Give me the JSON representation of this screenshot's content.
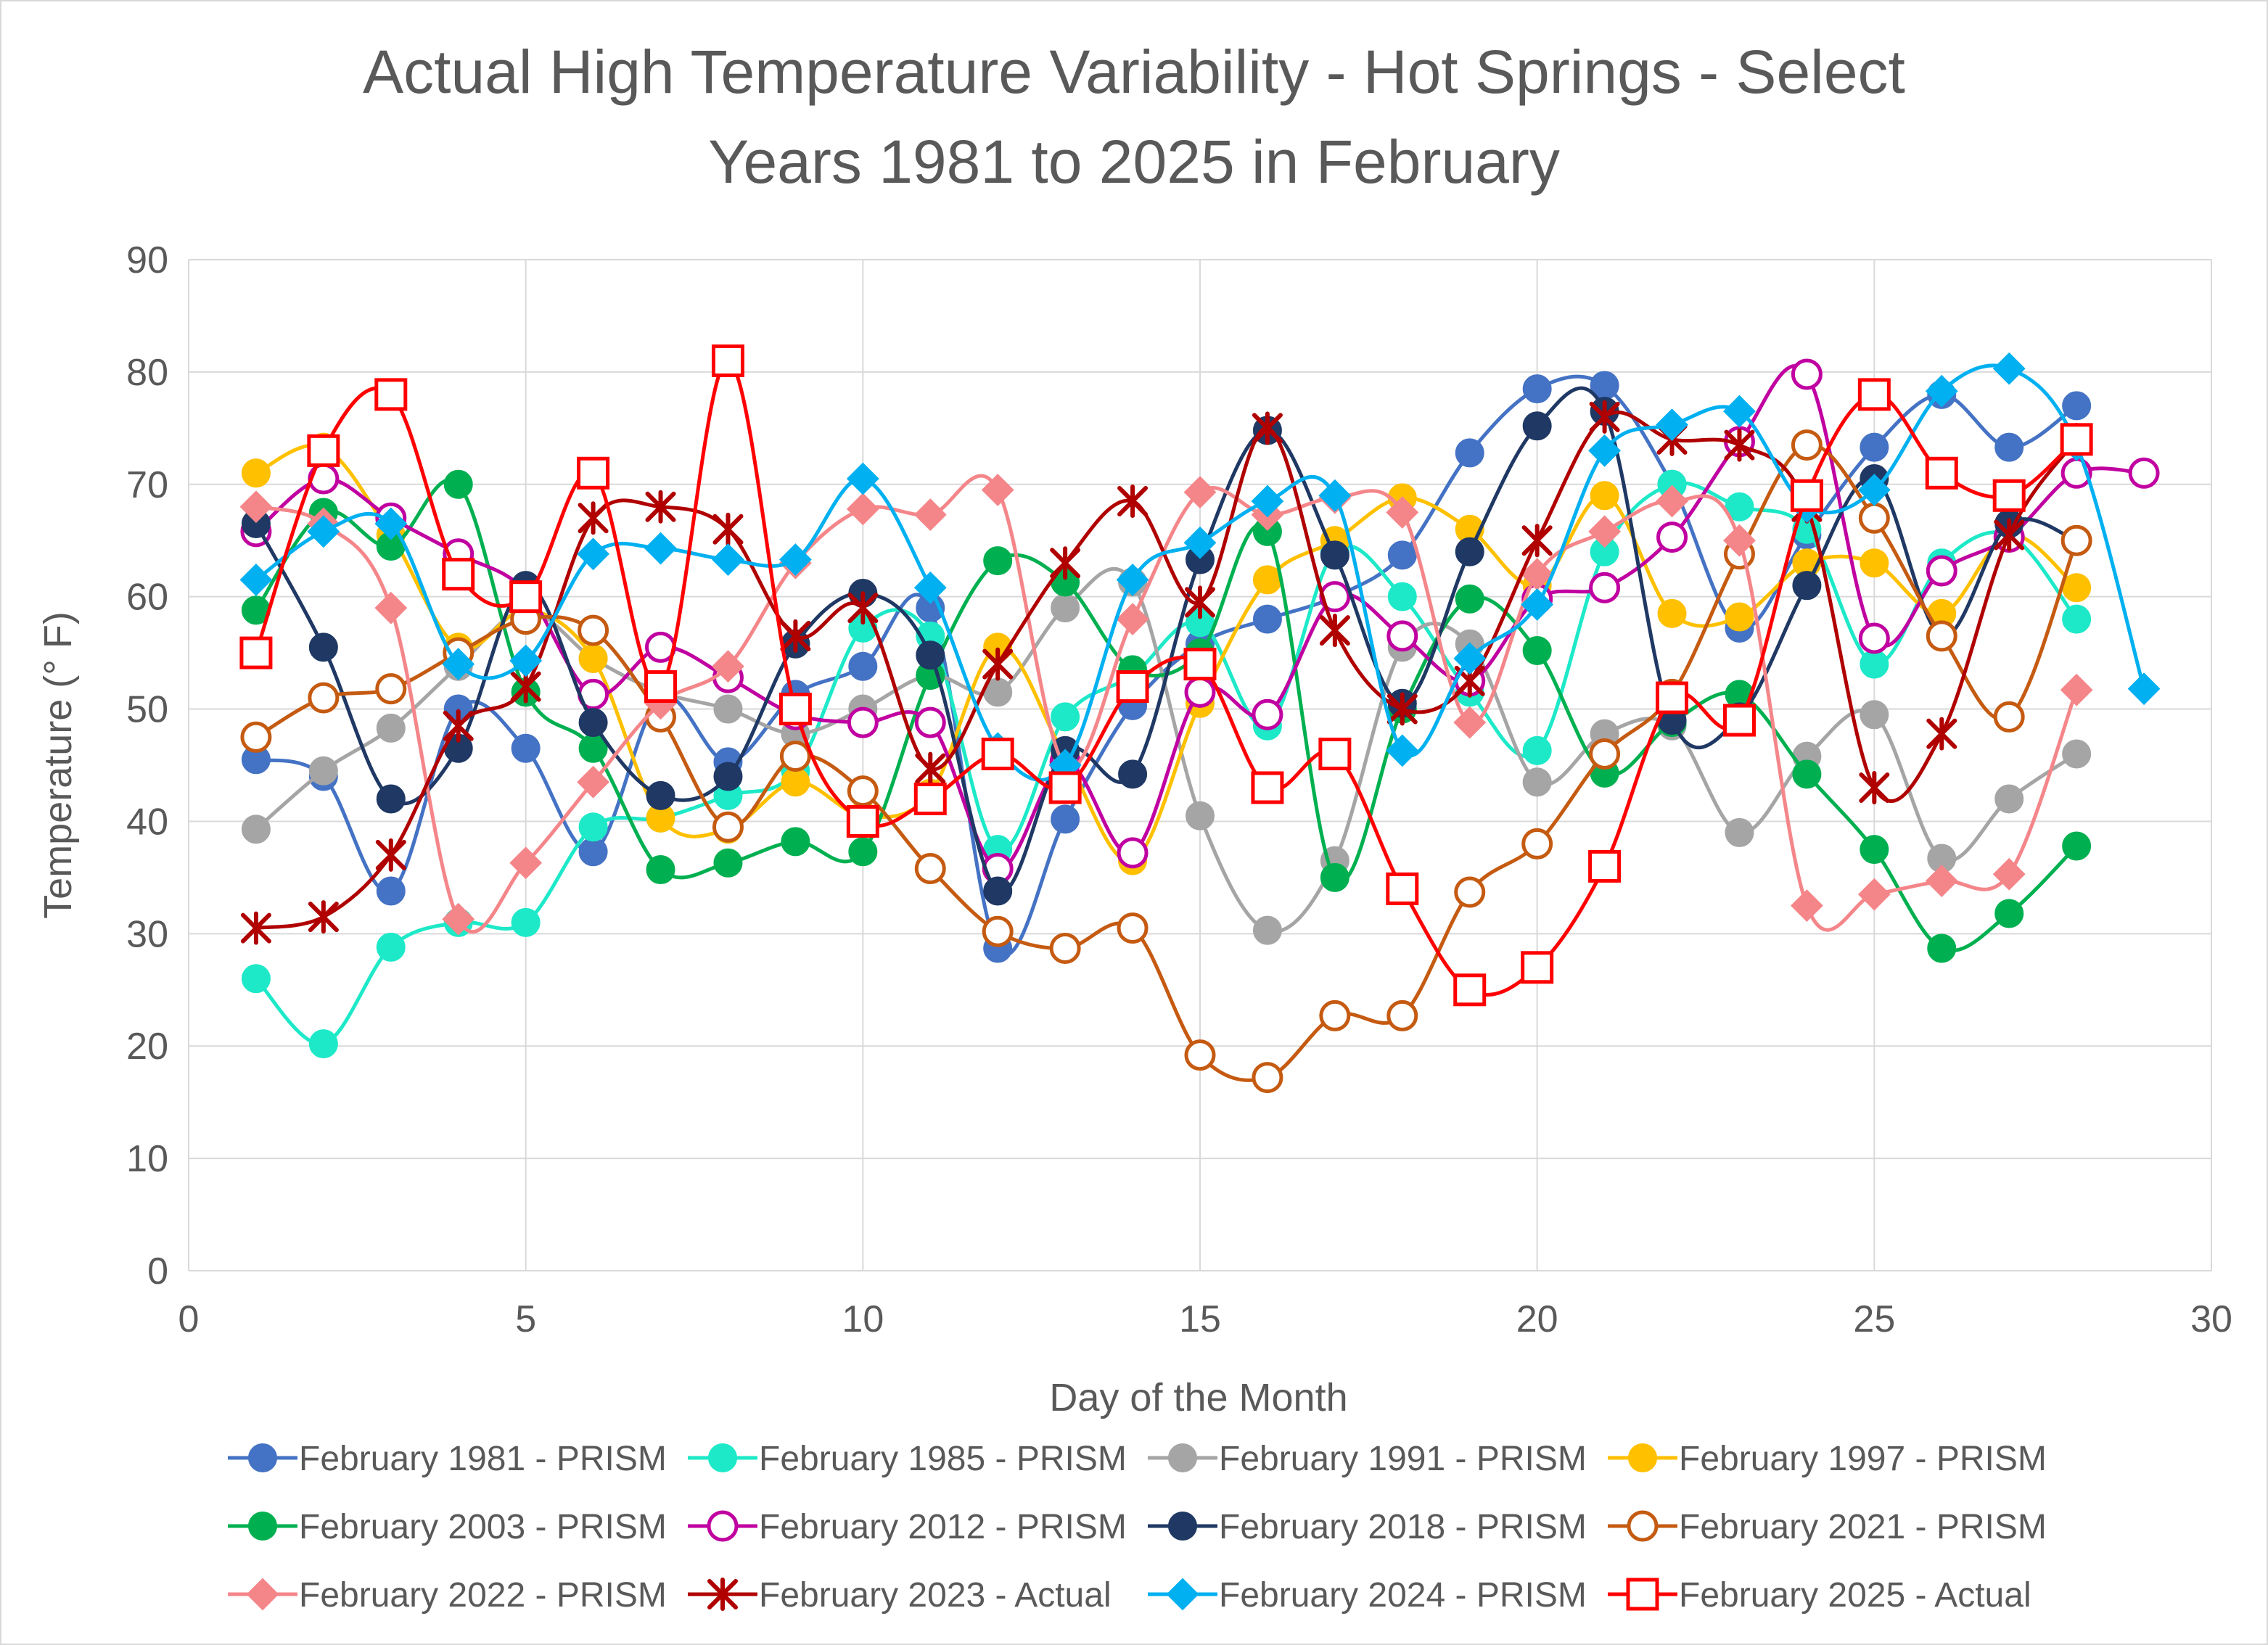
{
  "chart_data": {
    "type": "line",
    "title_lines": [
      "Actual High Temperature Variability - Hot Springs - Select",
      "Years 1981 to 2025 in February"
    ],
    "xlabel": "Day of the Month",
    "ylabel": "Temperature (° F)",
    "xlim": [
      0,
      30
    ],
    "ylim": [
      0,
      90
    ],
    "xticks": [
      0,
      5,
      10,
      15,
      20,
      25,
      30
    ],
    "yticks": [
      0,
      10,
      20,
      30,
      40,
      50,
      60,
      70,
      80,
      90
    ],
    "grid": true,
    "legend_position": "bottom",
    "series": [
      {
        "name": "February 1981 - PRISM",
        "color": "#4472C4",
        "marker": "circle-filled",
        "x": [
          1,
          2,
          3,
          4,
          5,
          6,
          7,
          8,
          9,
          10,
          11,
          12,
          13,
          14,
          15,
          16,
          17,
          18,
          19,
          20,
          21,
          22,
          23,
          24,
          25,
          26,
          27,
          28
        ],
        "values": [
          45.5,
          44,
          33.8,
          50,
          46.5,
          37.3,
          51,
          45.3,
          51.3,
          53.8,
          59,
          28.7,
          40.2,
          50.3,
          55.8,
          58,
          60,
          63.7,
          72.8,
          78.5,
          78.8,
          70,
          57.2,
          65.5,
          73.3,
          78,
          73.3,
          77
        ]
      },
      {
        "name": "February 1985 - PRISM",
        "color": "#1DE9C8",
        "marker": "circle-filled",
        "x": [
          1,
          2,
          3,
          4,
          5,
          6,
          7,
          8,
          9,
          10,
          11,
          12,
          13,
          14,
          15,
          16,
          17,
          18,
          19,
          20,
          21,
          22,
          23,
          24,
          25,
          26,
          27,
          28
        ],
        "values": [
          26,
          20.2,
          28.8,
          31,
          31,
          39.5,
          40.3,
          42.3,
          44.5,
          57.2,
          56.5,
          37.5,
          49.3,
          53,
          57.7,
          48.5,
          64,
          60,
          51.5,
          46.3,
          64,
          70,
          68,
          66,
          54,
          63,
          65.5,
          58
        ]
      },
      {
        "name": "February 1991 - PRISM",
        "color": "#A5A5A5",
        "marker": "circle-filled",
        "x": [
          1,
          2,
          3,
          4,
          5,
          6,
          7,
          8,
          9,
          10,
          11,
          12,
          13,
          14,
          15,
          16,
          17,
          18,
          19,
          20,
          21,
          22,
          23,
          24,
          25,
          26,
          27,
          28
        ],
        "values": [
          39.3,
          44.5,
          48.3,
          53.8,
          58.8,
          54.5,
          51.5,
          50,
          47.8,
          50,
          53,
          51.5,
          59,
          61.3,
          40.5,
          30.3,
          36.5,
          55.5,
          55.8,
          43.5,
          47.8,
          48.5,
          39,
          45.8,
          49.5,
          36.7,
          42,
          46
        ]
      },
      {
        "name": "February 1997 - PRISM",
        "color": "#FFC000",
        "marker": "circle-filled",
        "x": [
          1,
          2,
          3,
          4,
          5,
          6,
          7,
          8,
          9,
          10,
          11,
          12,
          13,
          14,
          15,
          16,
          17,
          18,
          19,
          20,
          21,
          22,
          23,
          24,
          25,
          26,
          27,
          28
        ],
        "values": [
          71,
          73.3,
          65.5,
          55.5,
          58.8,
          54.5,
          40.3,
          39.3,
          43.5,
          40.5,
          42.5,
          55.5,
          45.8,
          36.5,
          50.5,
          61.5,
          65,
          68.8,
          66,
          61,
          69,
          58.5,
          58.2,
          63,
          63,
          58.5,
          65.5,
          60.8
        ]
      },
      {
        "name": "February 2003 - PRISM",
        "color": "#00B050",
        "marker": "circle-filled",
        "x": [
          1,
          2,
          3,
          4,
          5,
          6,
          7,
          8,
          9,
          10,
          11,
          12,
          13,
          14,
          15,
          16,
          17,
          18,
          19,
          20,
          21,
          22,
          23,
          24,
          25,
          26,
          27,
          28
        ],
        "values": [
          58.8,
          67.5,
          64.5,
          70,
          51.5,
          46.5,
          35.7,
          36.3,
          38.2,
          37.3,
          53,
          63.2,
          61.3,
          53.5,
          55,
          65.8,
          35,
          50,
          59.8,
          55.2,
          44.3,
          48.8,
          51.3,
          44.2,
          37.5,
          28.7,
          31.8,
          37.8
        ]
      },
      {
        "name": "February 2012 - PRISM",
        "color": "#C000A0",
        "marker": "circle-open",
        "x": [
          1,
          2,
          3,
          4,
          5,
          6,
          7,
          8,
          9,
          10,
          11,
          12,
          13,
          14,
          15,
          16,
          17,
          18,
          19,
          20,
          21,
          22,
          23,
          24,
          25,
          26,
          27,
          28,
          29
        ],
        "values": [
          65.8,
          70.5,
          67,
          63.8,
          60.5,
          51.3,
          55.5,
          52.8,
          49.5,
          48.8,
          48.8,
          35.8,
          45.3,
          37.2,
          51.5,
          49.5,
          60,
          56.5,
          52.5,
          59.8,
          60.8,
          65.3,
          73.8,
          79.8,
          56.3,
          62.3,
          65.3,
          71,
          71
        ]
      },
      {
        "name": "February 2018 - PRISM",
        "color": "#1F3864",
        "marker": "circle-filled",
        "x": [
          1,
          2,
          3,
          4,
          5,
          6,
          7,
          8,
          9,
          10,
          11,
          12,
          13,
          14,
          15,
          16,
          17,
          18,
          19,
          20,
          21,
          22,
          23,
          24,
          25,
          26,
          27,
          28
        ],
        "values": [
          66.5,
          55.5,
          42,
          46.5,
          61,
          48.8,
          42.3,
          44,
          55.8,
          60.3,
          54.8,
          33.8,
          46.3,
          44.2,
          63.3,
          74.8,
          63.7,
          50.5,
          64,
          75.2,
          76.5,
          49,
          49.3,
          61,
          70.5,
          56.5,
          66.5,
          65
        ]
      },
      {
        "name": "February 2021 - PRISM",
        "color": "#C55A11",
        "marker": "circle-open",
        "x": [
          1,
          2,
          3,
          4,
          5,
          6,
          7,
          8,
          9,
          10,
          11,
          12,
          13,
          14,
          15,
          16,
          17,
          18,
          19,
          20,
          21,
          22,
          23,
          24,
          25,
          26,
          27,
          28
        ],
        "values": [
          47.5,
          51,
          51.8,
          55,
          58,
          57,
          49.3,
          39.5,
          45.8,
          42.7,
          35.8,
          30.2,
          28.7,
          30.5,
          19.2,
          17.2,
          22.7,
          22.7,
          33.7,
          38,
          46,
          51.3,
          63.8,
          73.5,
          67,
          56.5,
          49.3,
          65
        ]
      },
      {
        "name": "February 2022 - PRISM",
        "color": "#F4868A",
        "marker": "diamond",
        "x": [
          1,
          2,
          3,
          4,
          5,
          6,
          7,
          8,
          9,
          10,
          11,
          12,
          13,
          14,
          15,
          16,
          17,
          18,
          19,
          20,
          21,
          22,
          23,
          24,
          25,
          26,
          27,
          28
        ],
        "values": [
          68,
          66.5,
          59,
          31.3,
          36.3,
          43.5,
          50.5,
          53.8,
          63,
          67.8,
          67.3,
          69.5,
          45,
          58,
          69.3,
          67.3,
          68.8,
          67.5,
          48.8,
          62,
          65.8,
          68.5,
          65,
          32.5,
          33.5,
          34.7,
          35.3,
          51.7
        ]
      },
      {
        "name": "February 2023 - Actual",
        "color": "#B00000",
        "marker": "star",
        "x": [
          1,
          2,
          3,
          4,
          5,
          6,
          7,
          8,
          9,
          10,
          11,
          12,
          13,
          14,
          15,
          16,
          17,
          18,
          19,
          20,
          21,
          22,
          23,
          24,
          25,
          26,
          27,
          28
        ],
        "values": [
          30.5,
          31.5,
          37,
          48.5,
          52,
          67,
          68,
          66,
          56.5,
          59,
          44.7,
          54,
          63,
          68.5,
          59.5,
          75,
          57,
          50,
          52.5,
          65,
          76,
          74,
          73.5,
          68,
          43,
          47.8,
          65.5,
          74
        ]
      },
      {
        "name": "February 2024 - PRISM",
        "color": "#00B0F0",
        "marker": "diamond",
        "x": [
          1,
          2,
          3,
          4,
          5,
          6,
          7,
          8,
          9,
          10,
          11,
          12,
          13,
          14,
          15,
          16,
          17,
          18,
          19,
          20,
          21,
          22,
          23,
          24,
          25,
          26,
          27,
          28,
          29
        ],
        "values": [
          61.5,
          65.8,
          66.5,
          54,
          54.3,
          63.8,
          64.3,
          63.3,
          63.3,
          70.5,
          60.8,
          46.5,
          45,
          61.5,
          64.8,
          68.5,
          69,
          46.3,
          54.5,
          59.3,
          73,
          75.3,
          76.5,
          68,
          69.5,
          78.3,
          80.3,
          73.5,
          51.8
        ]
      },
      {
        "name": "February 2025 - Actual",
        "color": "#FF0000",
        "marker": "square-open",
        "x": [
          1,
          2,
          3,
          4,
          5,
          6,
          7,
          8,
          9,
          10,
          11,
          12,
          13,
          14,
          15,
          16,
          17,
          18,
          19,
          20,
          21,
          22,
          23,
          24,
          25,
          26,
          27,
          28
        ],
        "values": [
          55,
          73,
          78,
          62,
          60,
          71,
          52,
          81,
          50,
          40,
          42,
          46,
          43,
          52,
          54,
          43,
          46,
          34,
          25,
          27,
          36,
          51,
          49,
          69,
          78,
          71,
          69,
          74
        ]
      }
    ]
  }
}
